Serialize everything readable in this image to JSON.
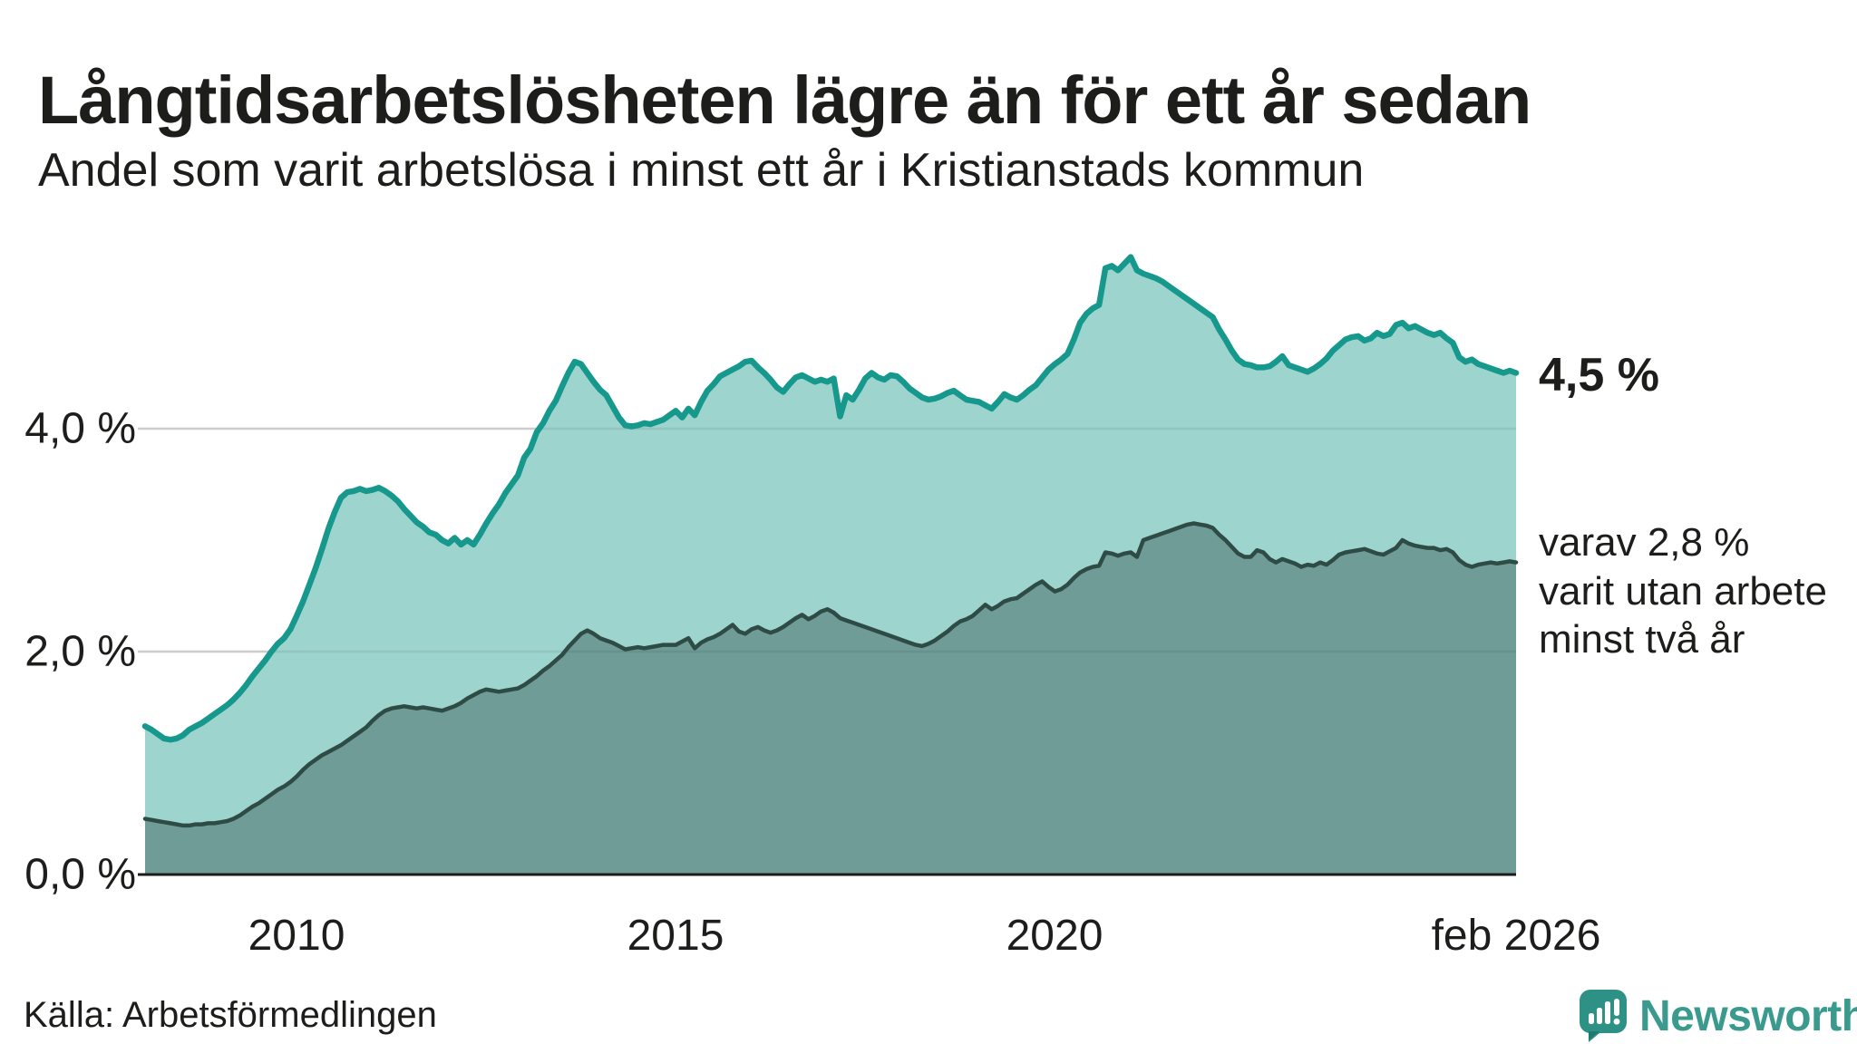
{
  "header": {
    "title": "Långtidsarbetslösheten lägre än för ett år sedan",
    "subtitle": "Andel som varit arbetslösa i minst ett år i Kristianstads kommun"
  },
  "chart_data": {
    "type": "area",
    "title": "Långtidsarbetslösheten lägre än för ett år sedan",
    "subtitle": "Andel som varit arbetslösa i minst ett år i Kristianstads kommun",
    "unit": "%",
    "frequency": "monthly",
    "x_start": "2008-01",
    "x_end": "2026-02",
    "x_domain": [
      2008,
      2026.0833
    ],
    "ylim": [
      0,
      5.7
    ],
    "grid": "horizontal",
    "legend_position": "none",
    "yticks": [
      {
        "value": 0,
        "label": "0,0 %"
      },
      {
        "value": 2,
        "label": "2,0 %"
      },
      {
        "value": 4,
        "label": "4,0 %"
      }
    ],
    "xticks": [
      {
        "pos": 2010.0,
        "label": "2010"
      },
      {
        "pos": 2015.0,
        "label": "2015"
      },
      {
        "pos": 2020.0,
        "label": "2020"
      },
      {
        "pos": 2026.0833,
        "label": "feb 2026"
      }
    ],
    "series": [
      {
        "name": "Arbetslösa minst ett år",
        "color": "#16998c",
        "fill": "#9ed4ce",
        "end_label": "4,5 %",
        "values": [
          1.33,
          1.3,
          1.26,
          1.22,
          1.21,
          1.22,
          1.25,
          1.3,
          1.33,
          1.36,
          1.4,
          1.44,
          1.48,
          1.52,
          1.57,
          1.63,
          1.7,
          1.78,
          1.85,
          1.92,
          2.0,
          2.07,
          2.12,
          2.2,
          2.32,
          2.45,
          2.6,
          2.75,
          2.92,
          3.1,
          3.25,
          3.38,
          3.43,
          3.44,
          3.46,
          3.44,
          3.45,
          3.47,
          3.44,
          3.4,
          3.35,
          3.28,
          3.22,
          3.16,
          3.12,
          3.07,
          3.05,
          3.0,
          2.97,
          3.02,
          2.96,
          3.0,
          2.96,
          3.05,
          3.15,
          3.24,
          3.32,
          3.42,
          3.5,
          3.58,
          3.74,
          3.82,
          3.97,
          4.05,
          4.16,
          4.25,
          4.38,
          4.5,
          4.6,
          4.58,
          4.5,
          4.42,
          4.35,
          4.3,
          4.2,
          4.1,
          4.03,
          4.02,
          4.03,
          4.05,
          4.04,
          4.06,
          4.08,
          4.12,
          4.16,
          4.1,
          4.18,
          4.12,
          4.24,
          4.34,
          4.4,
          4.47,
          4.5,
          4.53,
          4.56,
          4.6,
          4.61,
          4.55,
          4.5,
          4.44,
          4.37,
          4.33,
          4.4,
          4.46,
          4.48,
          4.45,
          4.42,
          4.44,
          4.42,
          4.45,
          4.11,
          4.3,
          4.26,
          4.35,
          4.45,
          4.5,
          4.46,
          4.44,
          4.48,
          4.47,
          4.42,
          4.36,
          4.32,
          4.28,
          4.26,
          4.27,
          4.29,
          4.32,
          4.34,
          4.3,
          4.26,
          4.25,
          4.24,
          4.21,
          4.18,
          4.24,
          4.31,
          4.28,
          4.26,
          4.3,
          4.35,
          4.39,
          4.46,
          4.53,
          4.58,
          4.62,
          4.67,
          4.8,
          4.95,
          5.03,
          5.08,
          5.11,
          5.44,
          5.46,
          5.42,
          5.48,
          5.54,
          5.42,
          5.39,
          5.37,
          5.35,
          5.32,
          5.28,
          5.24,
          5.2,
          5.16,
          5.12,
          5.08,
          5.04,
          5.0,
          4.89,
          4.8,
          4.7,
          4.62,
          4.58,
          4.57,
          4.55,
          4.55,
          4.56,
          4.6,
          4.65,
          4.57,
          4.55,
          4.53,
          4.51,
          4.54,
          4.58,
          4.63,
          4.7,
          4.75,
          4.8,
          4.82,
          4.83,
          4.79,
          4.81,
          4.86,
          4.83,
          4.85,
          4.93,
          4.95,
          4.9,
          4.92,
          4.89,
          4.86,
          4.84,
          4.86,
          4.81,
          4.77,
          4.64,
          4.6,
          4.62,
          4.58,
          4.56,
          4.54,
          4.52,
          4.5,
          4.52,
          4.5
        ]
      },
      {
        "name": "Varav utan arbete minst två år",
        "color": "#2e4b46",
        "fill": "#6f9c97",
        "end_label": "varav 2,8 % varit utan arbete minst två år",
        "values": [
          0.5,
          0.49,
          0.48,
          0.47,
          0.46,
          0.45,
          0.44,
          0.44,
          0.45,
          0.45,
          0.46,
          0.46,
          0.47,
          0.48,
          0.5,
          0.53,
          0.57,
          0.61,
          0.64,
          0.68,
          0.72,
          0.76,
          0.79,
          0.83,
          0.88,
          0.94,
          0.99,
          1.03,
          1.07,
          1.1,
          1.13,
          1.16,
          1.2,
          1.24,
          1.28,
          1.32,
          1.38,
          1.43,
          1.47,
          1.49,
          1.5,
          1.51,
          1.5,
          1.49,
          1.5,
          1.49,
          1.48,
          1.47,
          1.49,
          1.51,
          1.54,
          1.58,
          1.61,
          1.64,
          1.66,
          1.65,
          1.64,
          1.65,
          1.66,
          1.67,
          1.7,
          1.74,
          1.78,
          1.83,
          1.87,
          1.92,
          1.97,
          2.04,
          2.1,
          2.16,
          2.19,
          2.16,
          2.12,
          2.1,
          2.08,
          2.05,
          2.02,
          2.03,
          2.04,
          2.03,
          2.04,
          2.05,
          2.06,
          2.06,
          2.06,
          2.09,
          2.12,
          2.03,
          2.08,
          2.11,
          2.13,
          2.16,
          2.2,
          2.24,
          2.18,
          2.16,
          2.2,
          2.22,
          2.19,
          2.17,
          2.19,
          2.22,
          2.26,
          2.3,
          2.33,
          2.29,
          2.32,
          2.36,
          2.38,
          2.35,
          2.3,
          2.28,
          2.26,
          2.24,
          2.22,
          2.2,
          2.18,
          2.16,
          2.14,
          2.12,
          2.1,
          2.08,
          2.06,
          2.05,
          2.07,
          2.1,
          2.14,
          2.18,
          2.23,
          2.27,
          2.29,
          2.32,
          2.37,
          2.42,
          2.38,
          2.41,
          2.45,
          2.47,
          2.48,
          2.52,
          2.56,
          2.6,
          2.63,
          2.58,
          2.54,
          2.56,
          2.6,
          2.66,
          2.71,
          2.74,
          2.76,
          2.77,
          2.89,
          2.88,
          2.86,
          2.88,
          2.89,
          2.85,
          3.0,
          3.02,
          3.04,
          3.06,
          3.08,
          3.1,
          3.12,
          3.14,
          3.15,
          3.14,
          3.13,
          3.11,
          3.05,
          3.0,
          2.94,
          2.88,
          2.85,
          2.85,
          2.91,
          2.89,
          2.83,
          2.8,
          2.83,
          2.81,
          2.79,
          2.76,
          2.78,
          2.77,
          2.8,
          2.78,
          2.82,
          2.87,
          2.89,
          2.9,
          2.91,
          2.92,
          2.9,
          2.88,
          2.87,
          2.9,
          2.93,
          3.0,
          2.97,
          2.95,
          2.94,
          2.93,
          2.93,
          2.91,
          2.92,
          2.89,
          2.82,
          2.78,
          2.76,
          2.78,
          2.79,
          2.8,
          2.79,
          2.8,
          2.81,
          2.8
        ]
      }
    ],
    "colors": {
      "line_top": "#16998c",
      "fill_top": "#9ed4ce",
      "line_bottom": "#2e4b46",
      "fill_bottom": "#6f9c97",
      "gridline": "#dcdcdc",
      "axis": "#1b1b1b",
      "text": "#1d1d1b"
    }
  },
  "annotations": {
    "top_value": "4,5 %",
    "bottom_line1": "varav 2,8 %",
    "bottom_line2": "varit utan arbete",
    "bottom_line3": "minst två år"
  },
  "footer": {
    "source": "Källa: Arbetsförmedlingen",
    "brand": "Newsworthy",
    "brand_color": "#3a9a8e"
  }
}
